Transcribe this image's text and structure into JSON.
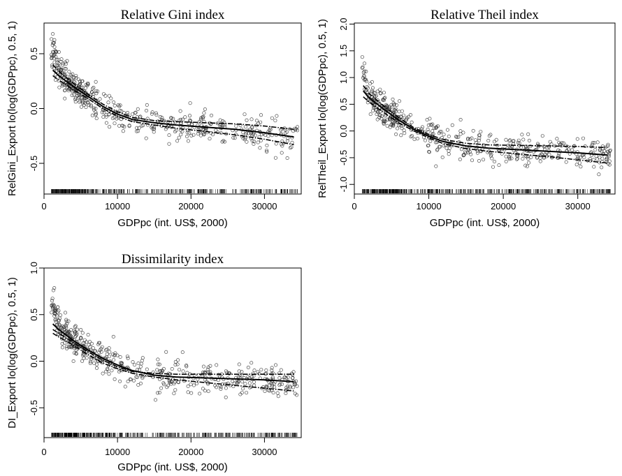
{
  "chart_data": [
    {
      "type": "scatter",
      "title": "Relative Gini index",
      "xlabel": "GDPpc (int. US$, 2000)",
      "ylabel": "RelGini_Export lo(log(GDPpc), 0.5, 1)",
      "xlim": [
        0,
        35000
      ],
      "ylim": [
        -0.78,
        0.78
      ],
      "xticks": [
        0,
        10000,
        20000,
        30000
      ],
      "xtick_labels": [
        "0",
        "10000",
        "20000",
        "30000"
      ],
      "yticks": [
        -0.5,
        0.0,
        0.5
      ],
      "ytick_labels": [
        "-0.5",
        "0.0",
        "0.5"
      ],
      "grid": false,
      "rug": true,
      "series": [
        {
          "style": "solid",
          "x": [
            1200,
            2000,
            4000,
            6000,
            8000,
            10000,
            12000,
            15000,
            18000,
            22000,
            26000,
            30000,
            34000
          ],
          "y": [
            0.35,
            0.3,
            0.2,
            0.11,
            0.02,
            -0.05,
            -0.1,
            -0.13,
            -0.15,
            -0.17,
            -0.19,
            -0.22,
            -0.26
          ]
        },
        {
          "style": "dashdot",
          "x": [
            1200,
            2000,
            4000,
            6000,
            8000,
            10000,
            12000,
            15000,
            18000,
            22000,
            26000,
            30000,
            34000
          ],
          "y": [
            0.4,
            0.34,
            0.23,
            0.13,
            0.04,
            -0.03,
            -0.08,
            -0.11,
            -0.12,
            -0.13,
            -0.14,
            -0.16,
            -0.19
          ]
        },
        {
          "style": "dashdot",
          "x": [
            1200,
            2000,
            4000,
            6000,
            8000,
            10000,
            12000,
            15000,
            18000,
            22000,
            26000,
            30000,
            34000
          ],
          "y": [
            0.3,
            0.26,
            0.17,
            0.09,
            0.0,
            -0.07,
            -0.12,
            -0.15,
            -0.18,
            -0.21,
            -0.24,
            -0.28,
            -0.33
          ]
        }
      ]
    },
    {
      "type": "scatter",
      "title": "Relative Theil index",
      "xlabel": "GDPpc (int. US$, 2000)",
      "ylabel": "RelTheil_Export lo(log(GDPpc), 0.5, 1)",
      "xlim": [
        0,
        35000
      ],
      "ylim": [
        -1.18,
        2.02
      ],
      "xticks": [
        0,
        10000,
        20000,
        30000
      ],
      "xtick_labels": [
        "0",
        "10000",
        "20000",
        "30000"
      ],
      "yticks": [
        -1.0,
        -0.5,
        0.0,
        0.5,
        1.0,
        1.5,
        2.0
      ],
      "ytick_labels": [
        "-1.0",
        "-0.5",
        "0.0",
        "0.5",
        "1.0",
        "1.5",
        "2.0"
      ],
      "grid": false,
      "rug": true,
      "series": [
        {
          "style": "solid",
          "x": [
            1200,
            2000,
            4000,
            6000,
            8000,
            10000,
            12000,
            15000,
            18000,
            22000,
            26000,
            30000,
            34000
          ],
          "y": [
            0.75,
            0.62,
            0.4,
            0.2,
            0.03,
            -0.1,
            -0.2,
            -0.28,
            -0.32,
            -0.35,
            -0.38,
            -0.41,
            -0.45
          ]
        },
        {
          "style": "dashdot",
          "x": [
            1200,
            2000,
            4000,
            6000,
            8000,
            10000,
            12000,
            15000,
            18000,
            22000,
            26000,
            30000,
            34000
          ],
          "y": [
            0.85,
            0.7,
            0.46,
            0.25,
            0.06,
            -0.07,
            -0.16,
            -0.23,
            -0.26,
            -0.27,
            -0.28,
            -0.29,
            -0.31
          ]
        },
        {
          "style": "dashdot",
          "x": [
            1200,
            2000,
            4000,
            6000,
            8000,
            10000,
            12000,
            15000,
            18000,
            22000,
            26000,
            30000,
            34000
          ],
          "y": [
            0.64,
            0.54,
            0.34,
            0.15,
            0.0,
            -0.13,
            -0.24,
            -0.33,
            -0.38,
            -0.43,
            -0.48,
            -0.54,
            -0.6
          ]
        }
      ]
    },
    {
      "type": "scatter",
      "title": "Dissimilarity index",
      "xlabel": "GDPpc (int. US$, 2000)",
      "ylabel": "DI_Export lo(log(GDPpc), 0.5, 1)",
      "xlim": [
        0,
        35000
      ],
      "ylim": [
        -0.82,
        1.0
      ],
      "xticks": [
        0,
        10000,
        20000,
        30000
      ],
      "xtick_labels": [
        "0",
        "10000",
        "20000",
        "30000"
      ],
      "yticks": [
        -0.5,
        0.0,
        0.5,
        1.0
      ],
      "ytick_labels": [
        "-0.5",
        "0.0",
        "0.5",
        "1.0"
      ],
      "grid": false,
      "rug": true,
      "series": [
        {
          "style": "solid",
          "x": [
            1200,
            2000,
            4000,
            6000,
            8000,
            10000,
            12000,
            15000,
            18000,
            22000,
            26000,
            30000,
            34000
          ],
          "y": [
            0.4,
            0.34,
            0.22,
            0.12,
            0.03,
            -0.04,
            -0.1,
            -0.15,
            -0.17,
            -0.18,
            -0.19,
            -0.2,
            -0.22
          ]
        },
        {
          "style": "dashdot",
          "x": [
            1200,
            2000,
            4000,
            6000,
            8000,
            10000,
            12000,
            15000,
            18000,
            22000,
            26000,
            30000,
            34000
          ],
          "y": [
            0.34,
            0.3,
            0.2,
            0.1,
            0.01,
            -0.06,
            -0.11,
            -0.13,
            -0.14,
            -0.14,
            -0.14,
            -0.14,
            -0.14
          ]
        },
        {
          "style": "dashdot",
          "x": [
            1200,
            2000,
            4000,
            6000,
            8000,
            10000,
            12000,
            15000,
            18000,
            22000,
            26000,
            30000,
            34000
          ],
          "y": [
            0.3,
            0.26,
            0.17,
            0.07,
            -0.02,
            -0.08,
            -0.13,
            -0.17,
            -0.2,
            -0.23,
            -0.26,
            -0.29,
            -0.32
          ]
        }
      ]
    }
  ]
}
